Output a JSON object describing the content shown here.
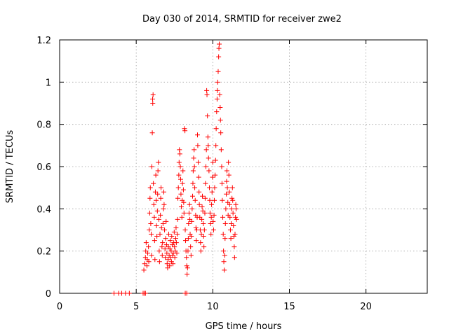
{
  "chart_data": {
    "type": "scatter",
    "title": "Day 030 of 2014, SRMTID for receiver zwe2",
    "xlabel": "GPS time / hours",
    "ylabel": "SRMTID / TECUs",
    "xlim": [
      0,
      24
    ],
    "ylim": [
      0,
      1.2
    ],
    "x_ticks": [
      0,
      5,
      10,
      15,
      20
    ],
    "x_tick_labels": [
      "0",
      "5",
      "10",
      "15",
      "20"
    ],
    "y_ticks": [
      0,
      0.2,
      0.4,
      0.6,
      0.8,
      1.0,
      1.2
    ],
    "y_tick_labels": [
      "0",
      "0.2",
      "0.4",
      "0.6",
      "0.8",
      "1",
      "1.2"
    ],
    "grid": true,
    "marker": "plus",
    "series": [
      {
        "name": "SRMTID zwe2",
        "color": "#ff0000",
        "points": [
          [
            3.55,
            0.0
          ],
          [
            3.85,
            0.0
          ],
          [
            4.05,
            0.0
          ],
          [
            4.3,
            0.0
          ],
          [
            4.55,
            0.0
          ],
          [
            5.45,
            0.0
          ],
          [
            5.55,
            0.0
          ],
          [
            5.6,
            0.0
          ],
          [
            8.2,
            0.0
          ],
          [
            8.3,
            0.0
          ],
          [
            5.5,
            0.11
          ],
          [
            5.55,
            0.14
          ],
          [
            5.6,
            0.17
          ],
          [
            5.62,
            0.2
          ],
          [
            5.65,
            0.24
          ],
          [
            5.7,
            0.13
          ],
          [
            5.72,
            0.16
          ],
          [
            5.75,
            0.19
          ],
          [
            5.8,
            0.22
          ],
          [
            5.82,
            0.15
          ],
          [
            5.85,
            0.3
          ],
          [
            5.88,
            0.38
          ],
          [
            5.9,
            0.45
          ],
          [
            5.92,
            0.5
          ],
          [
            5.95,
            0.33
          ],
          [
            5.98,
            0.28
          ],
          [
            6.0,
            0.18
          ],
          [
            6.02,
            0.6
          ],
          [
            6.05,
            0.76
          ],
          [
            6.07,
            0.92
          ],
          [
            6.08,
            0.9
          ],
          [
            6.1,
            0.94
          ],
          [
            6.12,
            0.52
          ],
          [
            6.15,
            0.42
          ],
          [
            6.18,
            0.36
          ],
          [
            6.2,
            0.25
          ],
          [
            6.22,
            0.16
          ],
          [
            6.25,
            0.48
          ],
          [
            6.28,
            0.56
          ],
          [
            6.3,
            0.44
          ],
          [
            6.32,
            0.32
          ],
          [
            6.35,
            0.27
          ],
          [
            6.38,
            0.39
          ],
          [
            6.4,
            0.47
          ],
          [
            6.42,
            0.58
          ],
          [
            6.45,
            0.62
          ],
          [
            6.48,
            0.35
          ],
          [
            6.5,
            0.2
          ],
          [
            6.52,
            0.15
          ],
          [
            6.55,
            0.28
          ],
          [
            6.58,
            0.37
          ],
          [
            6.6,
            0.45
          ],
          [
            6.62,
            0.5
          ],
          [
            6.65,
            0.31
          ],
          [
            6.68,
            0.22
          ],
          [
            6.7,
            0.18
          ],
          [
            6.72,
            0.24
          ],
          [
            6.75,
            0.33
          ],
          [
            6.78,
            0.4
          ],
          [
            6.8,
            0.48
          ],
          [
            6.82,
            0.42
          ],
          [
            6.85,
            0.3
          ],
          [
            6.88,
            0.21
          ],
          [
            6.9,
            0.17
          ],
          [
            6.92,
            0.26
          ],
          [
            6.95,
            0.34
          ],
          [
            6.98,
            0.23
          ],
          [
            7.0,
            0.19
          ],
          [
            7.02,
            0.14
          ],
          [
            7.05,
            0.12
          ],
          [
            7.08,
            0.16
          ],
          [
            7.1,
            0.22
          ],
          [
            7.12,
            0.28
          ],
          [
            7.15,
            0.18
          ],
          [
            7.18,
            0.13
          ],
          [
            7.2,
            0.21
          ],
          [
            7.22,
            0.25
          ],
          [
            7.25,
            0.17
          ],
          [
            7.28,
            0.2
          ],
          [
            7.3,
            0.15
          ],
          [
            7.32,
            0.27
          ],
          [
            7.35,
            0.23
          ],
          [
            7.38,
            0.18
          ],
          [
            7.4,
            0.14
          ],
          [
            7.42,
            0.19
          ],
          [
            7.45,
            0.24
          ],
          [
            7.48,
            0.29
          ],
          [
            7.5,
            0.22
          ],
          [
            7.52,
            0.17
          ],
          [
            7.55,
            0.2
          ],
          [
            7.58,
            0.26
          ],
          [
            7.6,
            0.31
          ],
          [
            7.62,
            0.24
          ],
          [
            7.65,
            0.19
          ],
          [
            7.68,
            0.28
          ],
          [
            7.7,
            0.35
          ],
          [
            7.72,
            0.45
          ],
          [
            7.75,
            0.5
          ],
          [
            7.78,
            0.56
          ],
          [
            7.8,
            0.62
          ],
          [
            7.82,
            0.68
          ],
          [
            7.85,
            0.66
          ],
          [
            7.88,
            0.6
          ],
          [
            7.9,
            0.54
          ],
          [
            7.92,
            0.47
          ],
          [
            7.95,
            0.41
          ],
          [
            7.98,
            0.36
          ],
          [
            8.0,
            0.44
          ],
          [
            8.02,
            0.52
          ],
          [
            8.05,
            0.58
          ],
          [
            8.08,
            0.49
          ],
          [
            8.1,
            0.43
          ],
          [
            8.12,
            0.38
          ],
          [
            8.15,
            0.78
          ],
          [
            8.18,
            0.77
          ],
          [
            8.2,
            0.3
          ],
          [
            8.22,
            0.25
          ],
          [
            8.25,
            0.2
          ],
          [
            8.28,
            0.17
          ],
          [
            8.3,
            0.13
          ],
          [
            8.32,
            0.09
          ],
          [
            8.35,
            0.12
          ],
          [
            8.38,
            0.2
          ],
          [
            8.4,
            0.26
          ],
          [
            8.42,
            0.33
          ],
          [
            8.45,
            0.38
          ],
          [
            8.48,
            0.42
          ],
          [
            8.5,
            0.35
          ],
          [
            8.52,
            0.28
          ],
          [
            8.55,
            0.22
          ],
          [
            8.58,
            0.18
          ],
          [
            8.6,
            0.27
          ],
          [
            8.62,
            0.34
          ],
          [
            8.65,
            0.4
          ],
          [
            8.68,
            0.46
          ],
          [
            8.7,
            0.52
          ],
          [
            8.72,
            0.58
          ],
          [
            8.75,
            0.64
          ],
          [
            8.78,
            0.68
          ],
          [
            8.8,
            0.6
          ],
          [
            8.82,
            0.5
          ],
          [
            8.85,
            0.44
          ],
          [
            8.88,
            0.37
          ],
          [
            8.9,
            0.31
          ],
          [
            8.92,
            0.25
          ],
          [
            8.95,
            0.3
          ],
          [
            8.98,
            0.36
          ],
          [
            9.0,
            0.75
          ],
          [
            9.02,
            0.7
          ],
          [
            9.05,
            0.62
          ],
          [
            9.08,
            0.55
          ],
          [
            9.1,
            0.48
          ],
          [
            9.12,
            0.42
          ],
          [
            9.15,
            0.36
          ],
          [
            9.18,
            0.3
          ],
          [
            9.2,
            0.24
          ],
          [
            9.22,
            0.2
          ],
          [
            9.25,
            0.28
          ],
          [
            9.28,
            0.35
          ],
          [
            9.3,
            0.41
          ],
          [
            9.32,
            0.46
          ],
          [
            9.35,
            0.39
          ],
          [
            9.38,
            0.33
          ],
          [
            9.4,
            0.27
          ],
          [
            9.42,
            0.22
          ],
          [
            9.45,
            0.3
          ],
          [
            9.48,
            0.38
          ],
          [
            9.5,
            0.45
          ],
          [
            9.52,
            0.52
          ],
          [
            9.55,
            0.6
          ],
          [
            9.58,
            0.68
          ],
          [
            9.6,
            0.96
          ],
          [
            9.62,
            0.94
          ],
          [
            9.65,
            0.84
          ],
          [
            9.68,
            0.74
          ],
          [
            9.7,
            0.7
          ],
          [
            9.72,
            0.64
          ],
          [
            9.75,
            0.58
          ],
          [
            9.78,
            0.5
          ],
          [
            9.8,
            0.44
          ],
          [
            9.82,
            0.38
          ],
          [
            9.85,
            0.33
          ],
          [
            9.88,
            0.28
          ],
          [
            9.9,
            0.36
          ],
          [
            9.92,
            0.42
          ],
          [
            9.95,
            0.48
          ],
          [
            9.98,
            0.55
          ],
          [
            10.0,
            0.62
          ],
          [
            10.02,
            0.34
          ],
          [
            10.05,
            0.3
          ],
          [
            10.08,
            0.37
          ],
          [
            10.1,
            0.44
          ],
          [
            10.12,
            0.5
          ],
          [
            10.15,
            0.56
          ],
          [
            10.18,
            0.63
          ],
          [
            10.2,
            0.7
          ],
          [
            10.22,
            0.78
          ],
          [
            10.25,
            0.86
          ],
          [
            10.28,
            0.92
          ],
          [
            10.3,
            0.96
          ],
          [
            10.32,
            1.0
          ],
          [
            10.35,
            1.05
          ],
          [
            10.38,
            1.12
          ],
          [
            10.4,
            1.16
          ],
          [
            10.42,
            1.18
          ],
          [
            10.45,
            0.94
          ],
          [
            10.48,
            0.88
          ],
          [
            10.5,
            0.82
          ],
          [
            10.52,
            0.76
          ],
          [
            10.55,
            0.68
          ],
          [
            10.58,
            0.6
          ],
          [
            10.6,
            0.52
          ],
          [
            10.62,
            0.44
          ],
          [
            10.65,
            0.36
          ],
          [
            10.68,
            0.28
          ],
          [
            10.7,
            0.2
          ],
          [
            10.72,
            0.15
          ],
          [
            10.75,
            0.11
          ],
          [
            10.78,
            0.18
          ],
          [
            10.8,
            0.26
          ],
          [
            10.82,
            0.33
          ],
          [
            10.85,
            0.4
          ],
          [
            10.88,
            0.47
          ],
          [
            10.9,
            0.53
          ],
          [
            10.92,
            0.58
          ],
          [
            10.95,
            0.5
          ],
          [
            10.98,
            0.43
          ],
          [
            11.0,
            0.37
          ],
          [
            11.02,
            0.62
          ],
          [
            11.05,
            0.56
          ],
          [
            11.08,
            0.48
          ],
          [
            11.1,
            0.42
          ],
          [
            11.12,
            0.36
          ],
          [
            11.15,
            0.3
          ],
          [
            11.18,
            0.26
          ],
          [
            11.2,
            0.33
          ],
          [
            11.22,
            0.4
          ],
          [
            11.25,
            0.45
          ],
          [
            11.28,
            0.5
          ],
          [
            11.3,
            0.44
          ],
          [
            11.32,
            0.38
          ],
          [
            11.35,
            0.32
          ],
          [
            11.38,
            0.27
          ],
          [
            11.4,
            0.22
          ],
          [
            11.42,
            0.17
          ],
          [
            11.45,
            0.28
          ],
          [
            11.48,
            0.36
          ],
          [
            11.5,
            0.42
          ],
          [
            11.52,
            0.4
          ],
          [
            11.55,
            0.35
          ]
        ]
      }
    ]
  }
}
